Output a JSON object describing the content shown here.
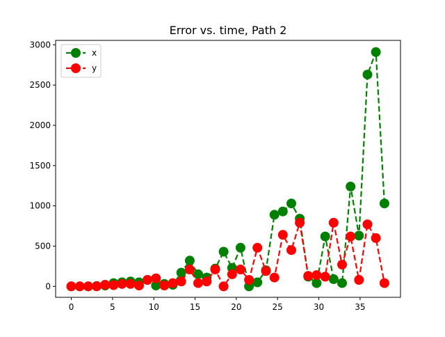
{
  "chart_data": {
    "type": "line",
    "title": "Error vs. time, Path 2",
    "xlabel": "",
    "ylabel": "",
    "xlim": [
      -1.9,
      39.9
    ],
    "ylim": [
      -136,
      3055
    ],
    "xticks": [
      0,
      5,
      10,
      15,
      20,
      25,
      30,
      35
    ],
    "xtick_labels": [
      "0",
      "5",
      "10",
      "15",
      "20",
      "25",
      "30",
      "35"
    ],
    "yticks": [
      0,
      500,
      1000,
      1500,
      2000,
      2500,
      3000
    ],
    "ytick_labels": [
      "0",
      "500",
      "1000",
      "1500",
      "2000",
      "2500",
      "3000"
    ],
    "grid": false,
    "legend_position": "top-left",
    "x": [
      0,
      1.03,
      2.05,
      3.08,
      4.1,
      5.13,
      6.15,
      7.18,
      8.21,
      9.23,
      10.26,
      11.28,
      12.31,
      13.33,
      14.36,
      15.38,
      16.41,
      17.44,
      18.46,
      19.49,
      20.51,
      21.54,
      22.56,
      23.59,
      24.62,
      25.64,
      26.67,
      27.69,
      28.72,
      29.74,
      30.77,
      31.79,
      32.82,
      33.85,
      34.87,
      35.9,
      36.92,
      37.95
    ],
    "series": [
      {
        "name": "x",
        "color": "#008000",
        "values": [
          0,
          0,
          0,
          5,
          10,
          40,
          50,
          60,
          50,
          80,
          10,
          30,
          20,
          170,
          320,
          150,
          110,
          220,
          430,
          230,
          480,
          0,
          50,
          200,
          890,
          930,
          1030,
          840,
          120,
          40,
          620,
          90,
          40,
          1240,
          630,
          2630,
          2910,
          1030
        ]
      },
      {
        "name": "y",
        "color": "#ff0000",
        "values": [
          0,
          0,
          0,
          0,
          20,
          15,
          30,
          30,
          10,
          80,
          100,
          10,
          40,
          60,
          210,
          40,
          60,
          210,
          0,
          150,
          210,
          80,
          480,
          190,
          110,
          640,
          450,
          790,
          130,
          140,
          120,
          790,
          270,
          620,
          80,
          770,
          600,
          40
        ]
      }
    ]
  }
}
